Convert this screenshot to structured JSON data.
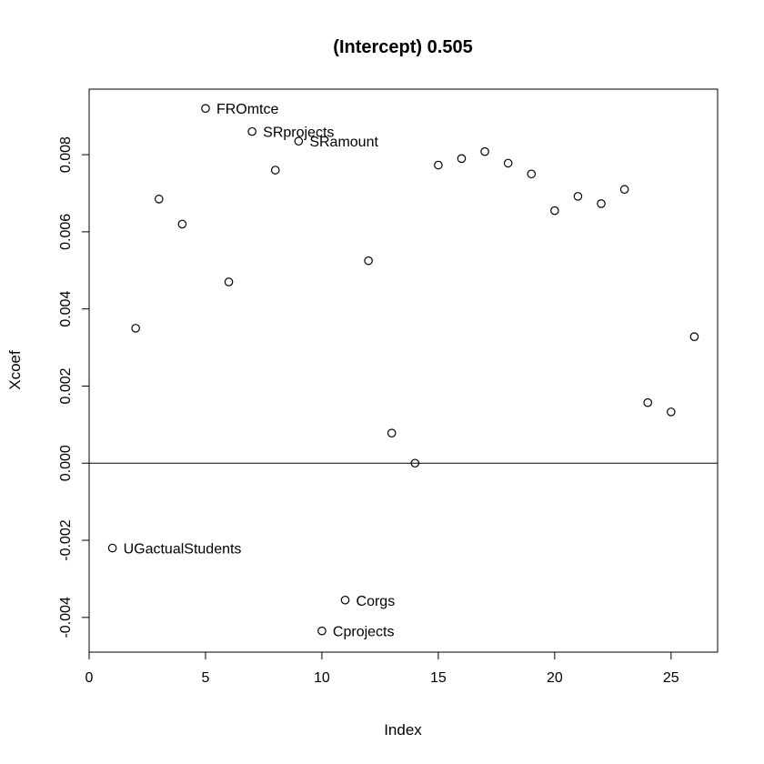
{
  "chart_data": {
    "type": "scatter",
    "title": "(Intercept) 0.505",
    "xlabel": "Index",
    "ylabel": "Xcoef",
    "xlim": [
      0,
      27
    ],
    "ylim": [
      -0.0049,
      0.0097
    ],
    "x_ticks": [
      0,
      5,
      10,
      15,
      20,
      25
    ],
    "x_tick_labels": [
      "0",
      "5",
      "10",
      "15",
      "20",
      "25"
    ],
    "y_ticks": [
      -0.004,
      -0.002,
      0.0,
      0.002,
      0.004,
      0.006,
      0.008
    ],
    "y_tick_labels": [
      "-0.004",
      "-0.002",
      "0.000",
      "0.002",
      "0.004",
      "0.006",
      "0.008"
    ],
    "hline": 0,
    "grid": false,
    "points": [
      {
        "x": 1,
        "y": -0.0022,
        "label": "UGactualStudents"
      },
      {
        "x": 2,
        "y": 0.0035
      },
      {
        "x": 3,
        "y": 0.00685
      },
      {
        "x": 4,
        "y": 0.0062
      },
      {
        "x": 5,
        "y": 0.0092,
        "label": "FROmtce"
      },
      {
        "x": 6,
        "y": 0.0047
      },
      {
        "x": 7,
        "y": 0.0086,
        "label": "SRprojects"
      },
      {
        "x": 8,
        "y": 0.0076
      },
      {
        "x": 9,
        "y": 0.00835,
        "label": "SRamount"
      },
      {
        "x": 10,
        "y": -0.00435,
        "label": "Cprojects"
      },
      {
        "x": 11,
        "y": -0.00355,
        "label": "Corgs"
      },
      {
        "x": 12,
        "y": 0.00525
      },
      {
        "x": 13,
        "y": 0.00078
      },
      {
        "x": 14,
        "y": 0.0
      },
      {
        "x": 15,
        "y": 0.00773
      },
      {
        "x": 16,
        "y": 0.0079
      },
      {
        "x": 17,
        "y": 0.00808
      },
      {
        "x": 18,
        "y": 0.00778
      },
      {
        "x": 19,
        "y": 0.0075
      },
      {
        "x": 20,
        "y": 0.00655
      },
      {
        "x": 21,
        "y": 0.00692
      },
      {
        "x": 22,
        "y": 0.00673
      },
      {
        "x": 23,
        "y": 0.0071
      },
      {
        "x": 24,
        "y": 0.00157
      },
      {
        "x": 25,
        "y": 0.00133
      },
      {
        "x": 26,
        "y": 0.00328
      }
    ]
  }
}
